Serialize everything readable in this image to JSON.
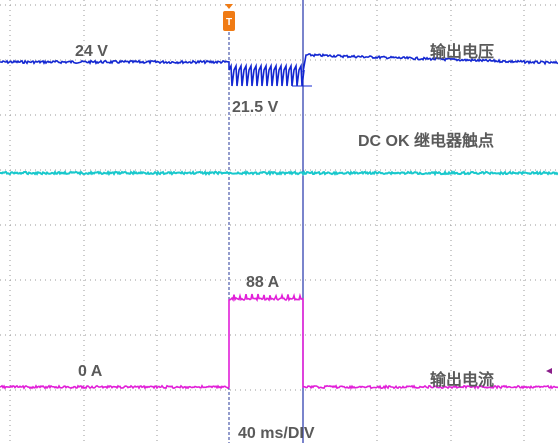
{
  "chart_data": {
    "type": "line",
    "timebase": "40 ms/DIV",
    "trigger_marker": "T",
    "annotations": {
      "voltage_nominal": "24 V",
      "voltage_dip": "21.5 V",
      "current_peak": "88 A",
      "current_zero": "0 A"
    },
    "series": [
      {
        "name": "输出电压",
        "color": "#1428d2",
        "unit": "V",
        "values": [
          24,
          24,
          21.5,
          24.3,
          24.1
        ]
      },
      {
        "name": "DC OK 继电器触点",
        "color": "#19c8cc"
      },
      {
        "name": "输出电流",
        "color": "#e11fd8",
        "unit": "A",
        "values": [
          0,
          0,
          88,
          0,
          0
        ]
      }
    ]
  }
}
